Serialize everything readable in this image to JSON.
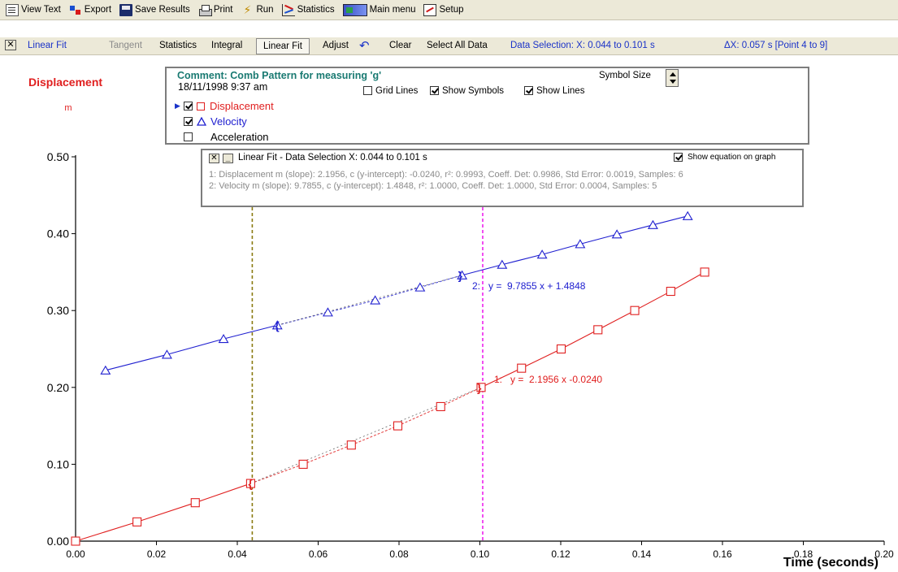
{
  "toolbar": {
    "items": [
      {
        "label": "View Text",
        "icon": "view-text-icon"
      },
      {
        "label": "Export",
        "icon": "export-icon"
      },
      {
        "label": "Save Results",
        "icon": "save-icon"
      },
      {
        "label": "Print",
        "icon": "print-icon"
      },
      {
        "label": "Run",
        "icon": "run-icon"
      },
      {
        "label": "Statistics",
        "icon": "statistics-icon"
      },
      {
        "label": "Main menu",
        "icon": "main-menu-icon"
      },
      {
        "label": "Setup",
        "icon": "setup-icon"
      }
    ]
  },
  "fitbar": {
    "mode_label": "Linear Fit",
    "tangent": "Tangent",
    "statistics": "Statistics",
    "integral": "Integral",
    "linear_fit": "Linear Fit",
    "adjust": "Adjust",
    "clear": "Clear",
    "select_all": "Select All Data",
    "data_selection": "Data Selection:  X: 0.044 to 0.101 s",
    "delta": "ΔX: 0.057 s [Point 4 to 9]"
  },
  "legend": {
    "comment": "Comment: Comb Pattern for measuring 'g'",
    "date": "18/11/1998 9:37 am",
    "symbol_size": "Symbol Size",
    "grid_lines": "Grid Lines",
    "show_symbols": "Show Symbols",
    "show_lines": "Show Lines",
    "series": [
      {
        "name": "Displacement",
        "checked": true
      },
      {
        "name": "Velocity",
        "checked": true
      },
      {
        "name": "Acceleration",
        "checked": false
      }
    ]
  },
  "fit_panel": {
    "title": "Linear Fit - Data Selection X: 0.044 to 0.101 s",
    "show_equation": "Show equation on graph",
    "line1": "1: Displacement m (slope): 2.1956, c (y-intercept): -0.0240, r²: 0.9993, Coeff. Det: 0.9986, Std Error: 0.0019, Samples: 6",
    "line2": "2: Velocity m (slope): 9.7855, c (y-intercept): 1.4848, r²: 1.0000, Coeff. Det: 1.0000, Std Error: 0.0004, Samples: 5"
  },
  "chart_data": {
    "type": "scatter",
    "ylabel": "Displacement",
    "yunit": "m",
    "xlabel": "Time (seconds)",
    "xlim": [
      0,
      0.2
    ],
    "ylim": [
      0,
      0.5
    ],
    "xticks": [
      "0.00",
      "0.02",
      "0.04",
      "0.06",
      "0.08",
      "0.10",
      "0.12",
      "0.14",
      "0.16",
      "0.18",
      "0.20"
    ],
    "yticks": [
      "0.00",
      "0.10",
      "0.20",
      "0.30",
      "0.40",
      "0.50"
    ],
    "cursors": [
      0.0437,
      0.1007
    ],
    "series": [
      {
        "name": "Displacement",
        "color": "#e02020",
        "marker": "square",
        "x": [
          0.0,
          0.0152,
          0.0296,
          0.0433,
          0.0563,
          0.0682,
          0.0797,
          0.0903,
          0.1003,
          0.1103,
          0.1201,
          0.1292,
          0.1383,
          0.1472,
          0.1556
        ],
        "y": [
          0.0,
          0.025,
          0.05,
          0.075,
          0.1,
          0.125,
          0.15,
          0.175,
          0.2,
          0.225,
          0.25,
          0.275,
          0.3,
          0.325,
          0.35
        ]
      },
      {
        "name": "Velocity",
        "color": "#2020d0",
        "marker": "triangle",
        "x": [
          0.0074,
          0.0226,
          0.0366,
          0.0499,
          0.0624,
          0.0741,
          0.0852,
          0.0956,
          0.1055,
          0.1154,
          0.1248,
          0.1339,
          0.1428,
          0.1514
        ],
        "y": [
          0.2222,
          0.2427,
          0.2631,
          0.2809,
          0.2977,
          0.3134,
          0.3302,
          0.3459,
          0.3597,
          0.3729,
          0.3865,
          0.3992,
          0.4114,
          0.423
        ]
      }
    ],
    "fit_labels": [
      {
        "text": "1:   y =  2.1956 x -0.0240",
        "series": "Displacement"
      },
      {
        "text": "2:   y =  9.7855 x + 1.4848",
        "series": "Velocity"
      }
    ]
  }
}
